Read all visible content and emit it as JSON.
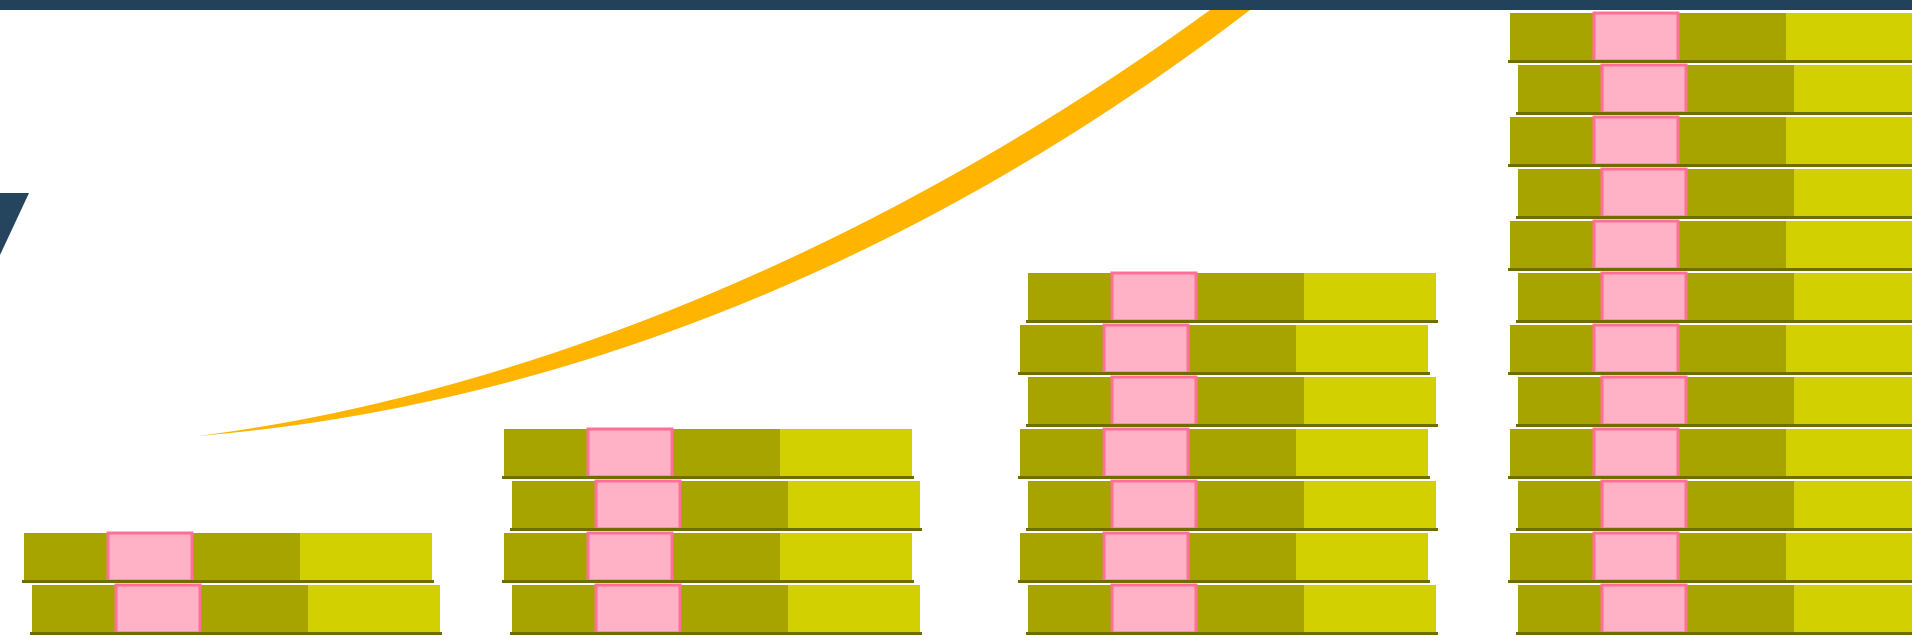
{
  "colors": {
    "background": "#ffffff",
    "top_band": "#22415a",
    "arrow_accent": "#25445e",
    "curve": "#ffb400",
    "note_light": "#d2d000",
    "note_dark": "#a7a400",
    "note_edge": "#6f6c00",
    "band_fill": "#ffb2c6",
    "band_stroke": "#ff6f96"
  },
  "icons": [
    "money-stack-icon",
    "growth-curve-icon",
    "arrow-icon"
  ],
  "stacks": [
    {
      "name": "money-stack-1",
      "bundles": 2
    },
    {
      "name": "money-stack-2",
      "bundles": 4
    },
    {
      "name": "money-stack-3",
      "bundles": 7
    },
    {
      "name": "money-stack-4",
      "bundles": 12,
      "continues_beyond_top_edge": true
    }
  ]
}
